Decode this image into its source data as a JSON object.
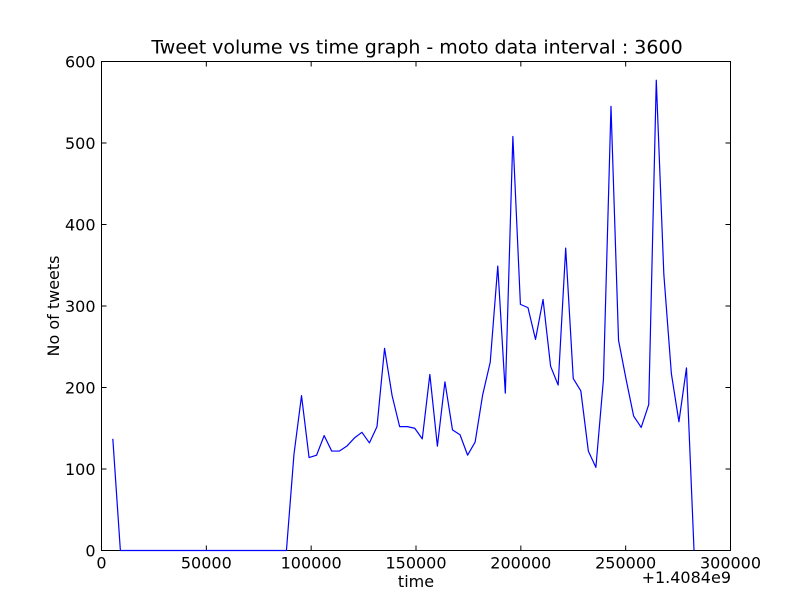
{
  "chart_data": {
    "type": "line",
    "title": "Tweet volume vs time graph - moto data interval : 3600",
    "xlabel": "time",
    "ylabel": "No of tweets",
    "x_offset_label": "+1.4084e9",
    "xlim": [
      0,
      300000
    ],
    "ylim": [
      0,
      600
    ],
    "x_ticks": [
      0,
      50000,
      100000,
      150000,
      200000,
      250000,
      300000
    ],
    "y_ticks": [
      0,
      100,
      200,
      300,
      400,
      500,
      600
    ],
    "x_tick_labels": [
      "0",
      "50000",
      "100000",
      "150000",
      "200000",
      "250000",
      "300000"
    ],
    "y_tick_labels": [
      "0",
      "100",
      "200",
      "300",
      "400",
      "500",
      "600"
    ],
    "grid": false,
    "series": [
      {
        "color": "#0000ff",
        "points": [
          [
            5400,
            137
          ],
          [
            9000,
            0
          ],
          [
            12600,
            0
          ],
          [
            16200,
            0
          ],
          [
            19800,
            0
          ],
          [
            23400,
            0
          ],
          [
            27000,
            0
          ],
          [
            30600,
            0
          ],
          [
            34200,
            0
          ],
          [
            37800,
            0
          ],
          [
            41400,
            0
          ],
          [
            45000,
            0
          ],
          [
            48600,
            0
          ],
          [
            52200,
            0
          ],
          [
            55800,
            0
          ],
          [
            59400,
            0
          ],
          [
            63000,
            0
          ],
          [
            66600,
            0
          ],
          [
            70200,
            0
          ],
          [
            73800,
            0
          ],
          [
            77400,
            0
          ],
          [
            81000,
            0
          ],
          [
            84600,
            0
          ],
          [
            88200,
            0
          ],
          [
            91800,
            118
          ],
          [
            95400,
            190
          ],
          [
            99000,
            114
          ],
          [
            102600,
            117
          ],
          [
            106200,
            141
          ],
          [
            109800,
            122
          ],
          [
            113400,
            122
          ],
          [
            117000,
            128
          ],
          [
            120600,
            138
          ],
          [
            124200,
            145
          ],
          [
            127800,
            132
          ],
          [
            131400,
            152
          ],
          [
            135000,
            248
          ],
          [
            138600,
            190
          ],
          [
            142200,
            152
          ],
          [
            145800,
            152
          ],
          [
            149400,
            150
          ],
          [
            153000,
            137
          ],
          [
            156600,
            216
          ],
          [
            160200,
            128
          ],
          [
            163800,
            207
          ],
          [
            167400,
            148
          ],
          [
            171000,
            142
          ],
          [
            174600,
            117
          ],
          [
            178200,
            133
          ],
          [
            181800,
            191
          ],
          [
            185400,
            231
          ],
          [
            189000,
            349
          ],
          [
            192600,
            193
          ],
          [
            196200,
            508
          ],
          [
            199800,
            302
          ],
          [
            203400,
            298
          ],
          [
            207000,
            259
          ],
          [
            210600,
            308
          ],
          [
            214200,
            226
          ],
          [
            217800,
            203
          ],
          [
            221400,
            371
          ],
          [
            225000,
            211
          ],
          [
            228600,
            196
          ],
          [
            232200,
            122
          ],
          [
            235800,
            102
          ],
          [
            239400,
            210
          ],
          [
            243000,
            545
          ],
          [
            246600,
            258
          ],
          [
            250200,
            210
          ],
          [
            253800,
            165
          ],
          [
            257400,
            151
          ],
          [
            261000,
            179
          ],
          [
            264600,
            577
          ],
          [
            268200,
            339
          ],
          [
            271800,
            217
          ],
          [
            275400,
            158
          ],
          [
            279000,
            224
          ],
          [
            282600,
            0
          ]
        ]
      }
    ]
  }
}
